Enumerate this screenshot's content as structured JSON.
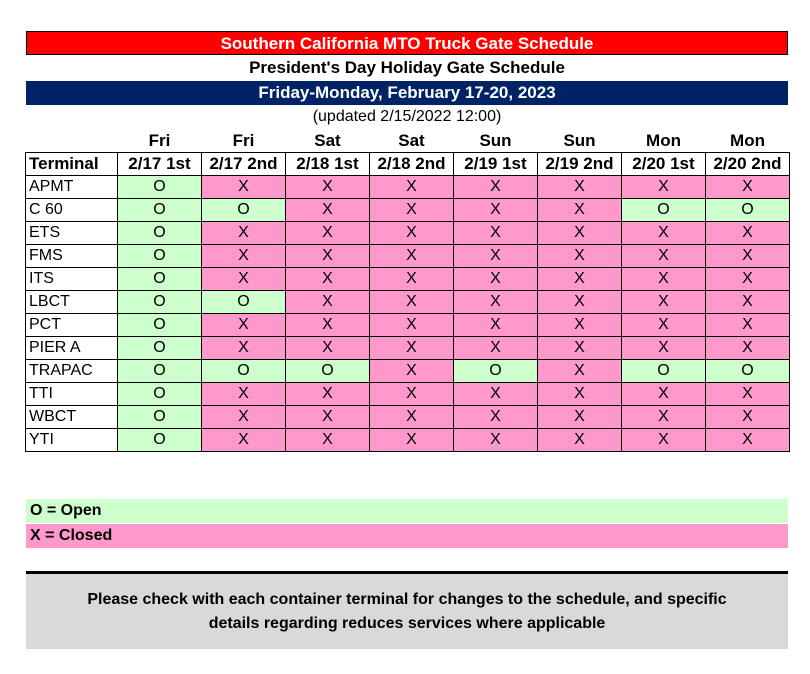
{
  "title": "Southern California MTO Truck Gate Schedule",
  "subtitle": "President's Day Holiday Gate Schedule",
  "date_range": "Friday-Monday, February 17-20, 2023",
  "updated": "(updated 2/15/2022 12:00)",
  "days": [
    "Fri",
    "Fri",
    "Sat",
    "Sat",
    "Sun",
    "Sun",
    "Mon",
    "Mon"
  ],
  "header": {
    "terminal": "Terminal",
    "shifts": [
      "2/17 1st",
      "2/17 2nd",
      "2/18 1st",
      "2/18 2nd",
      "2/19 1st",
      "2/19 2nd",
      "2/20 1st",
      "2/20 2nd"
    ]
  },
  "rows": [
    {
      "terminal": "APMT",
      "cells": [
        "O",
        "X",
        "X",
        "X",
        "X",
        "X",
        "X",
        "X"
      ]
    },
    {
      "terminal": "C 60",
      "cells": [
        "O",
        "O",
        "X",
        "X",
        "X",
        "X",
        "O",
        "O"
      ]
    },
    {
      "terminal": "ETS",
      "cells": [
        "O",
        "X",
        "X",
        "X",
        "X",
        "X",
        "X",
        "X"
      ]
    },
    {
      "terminal": "FMS",
      "cells": [
        "O",
        "X",
        "X",
        "X",
        "X",
        "X",
        "X",
        "X"
      ]
    },
    {
      "terminal": "ITS",
      "cells": [
        "O",
        "X",
        "X",
        "X",
        "X",
        "X",
        "X",
        "X"
      ]
    },
    {
      "terminal": "LBCT",
      "cells": [
        "O",
        "O",
        "X",
        "X",
        "X",
        "X",
        "X",
        "X"
      ]
    },
    {
      "terminal": "PCT",
      "cells": [
        "O",
        "X",
        "X",
        "X",
        "X",
        "X",
        "X",
        "X"
      ]
    },
    {
      "terminal": "PIER A",
      "cells": [
        "O",
        "X",
        "X",
        "X",
        "X",
        "X",
        "X",
        "X"
      ]
    },
    {
      "terminal": "TRAPAC",
      "cells": [
        "O",
        "O",
        "O",
        "X",
        "O",
        "X",
        "O",
        "O"
      ]
    },
    {
      "terminal": "TTI",
      "cells": [
        "O",
        "X",
        "X",
        "X",
        "X",
        "X",
        "X",
        "X"
      ]
    },
    {
      "terminal": "WBCT",
      "cells": [
        "O",
        "X",
        "X",
        "X",
        "X",
        "X",
        "X",
        "X"
      ]
    },
    {
      "terminal": "YTI",
      "cells": [
        "O",
        "X",
        "X",
        "X",
        "X",
        "X",
        "X",
        "X"
      ]
    }
  ],
  "legend": {
    "open": "O = Open",
    "closed": "X = Closed"
  },
  "note": {
    "line1": "Please check with each container terminal for changes to the schedule, and specific",
    "line2": "details regarding reduces services where applicable"
  },
  "colors": {
    "title_bg": "#ff0000",
    "date_bg": "#002366",
    "open_bg": "#ccffcc",
    "closed_bg": "#ff99cc",
    "note_bg": "#d9d9d9"
  }
}
